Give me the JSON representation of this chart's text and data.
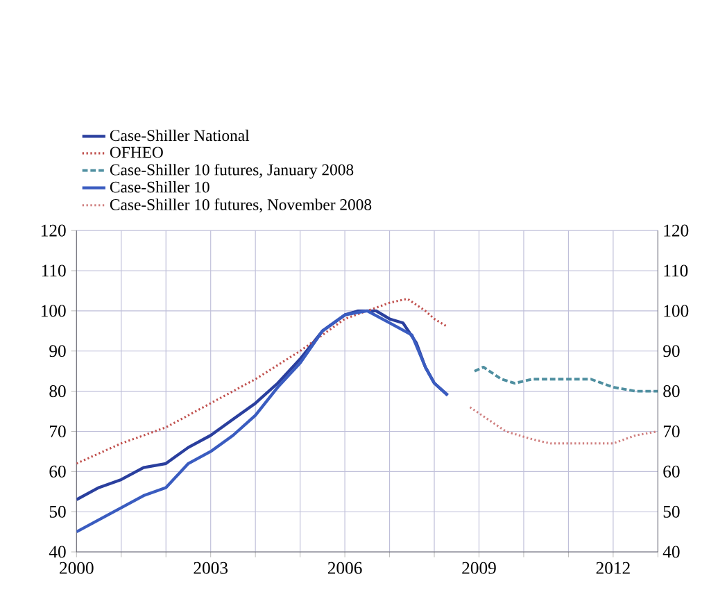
{
  "chart_data": {
    "type": "line",
    "xlim": [
      2000,
      2013
    ],
    "xticks": [
      2000,
      {
        "value": 2001,
        "label": null
      },
      {
        "value": 2002,
        "label": null
      },
      2003,
      {
        "value": 2004,
        "label": null
      },
      {
        "value": 2005,
        "label": null
      },
      2006,
      {
        "value": 2007,
        "label": null
      },
      {
        "value": 2008,
        "label": null
      },
      2009,
      {
        "value": 2010,
        "label": null
      },
      {
        "value": 2011,
        "label": null
      },
      2012,
      {
        "value": 2013,
        "label": null
      }
    ],
    "ylim": [
      40,
      120
    ],
    "yticks": [
      40,
      50,
      60,
      70,
      80,
      90,
      100,
      110,
      120
    ],
    "y2lim": [
      40,
      120
    ],
    "y2ticks": [
      40,
      50,
      60,
      70,
      80,
      90,
      100,
      110,
      120
    ],
    "grid": true,
    "legend": "top left",
    "marker": "none",
    "series": [
      {
        "name": "Case-Shiller National",
        "color": "#2a3f9e",
        "line_style": "solid",
        "x": [
          2000,
          2000.5,
          2001,
          2001.5,
          2002,
          2002.5,
          2003,
          2003.5,
          2004,
          2004.5,
          2005,
          2005.5,
          2006,
          2006.3,
          2006.7,
          2007,
          2007.3,
          2007.6,
          2007.8,
          2008,
          2008.2,
          2008.3
        ],
        "values": [
          53,
          56,
          58,
          61,
          62,
          66,
          69,
          73,
          77,
          82,
          88,
          95,
          99,
          100,
          100,
          98,
          97,
          92,
          86,
          82,
          80,
          79
        ]
      },
      {
        "name": "OFHEO",
        "color": "#c0504d",
        "line_style": "dotted",
        "x": [
          2000,
          2001,
          2002,
          2003,
          2004,
          2005,
          2006,
          2006.5,
          2007,
          2007.4,
          2007.8,
          2008,
          2008.3
        ],
        "values": [
          62,
          67,
          71,
          77,
          83,
          90,
          98,
          100,
          102,
          103,
          100,
          98,
          96
        ]
      },
      {
        "name": "Case-Shiller 10 futures, January 2008",
        "color": "#4f8fa0",
        "line_style": "dashed",
        "x": [
          2008.9,
          2009.1,
          2009.5,
          2009.8,
          2010.2,
          2011,
          2011.5,
          2012,
          2012.5,
          2013
        ],
        "values": [
          85,
          86,
          83,
          82,
          83,
          83,
          83,
          81,
          80,
          80
        ]
      },
      {
        "name": "Case-Shiller 10",
        "color": "#3a5cc0",
        "line_style": "solid",
        "x": [
          2000,
          2000.5,
          2001,
          2001.5,
          2002,
          2002.5,
          2003,
          2003.5,
          2004,
          2004.5,
          2005,
          2005.5,
          2006,
          2006.5,
          2007,
          2007.5,
          2007.8,
          2008,
          2008.3
        ],
        "values": [
          45,
          48,
          51,
          54,
          56,
          62,
          65,
          69,
          74,
          81,
          87,
          95,
          99,
          100,
          97,
          94,
          86,
          82,
          79
        ]
      },
      {
        "name": "Case-Shiller 10 futures, November 2008",
        "color": "#d08080",
        "line_style": "dotted",
        "x": [
          2008.8,
          2009.2,
          2009.6,
          2010.2,
          2010.6,
          2011.3,
          2012,
          2012.5,
          2013
        ],
        "values": [
          76,
          73,
          70,
          68,
          67,
          67,
          67,
          69,
          70
        ]
      }
    ]
  }
}
